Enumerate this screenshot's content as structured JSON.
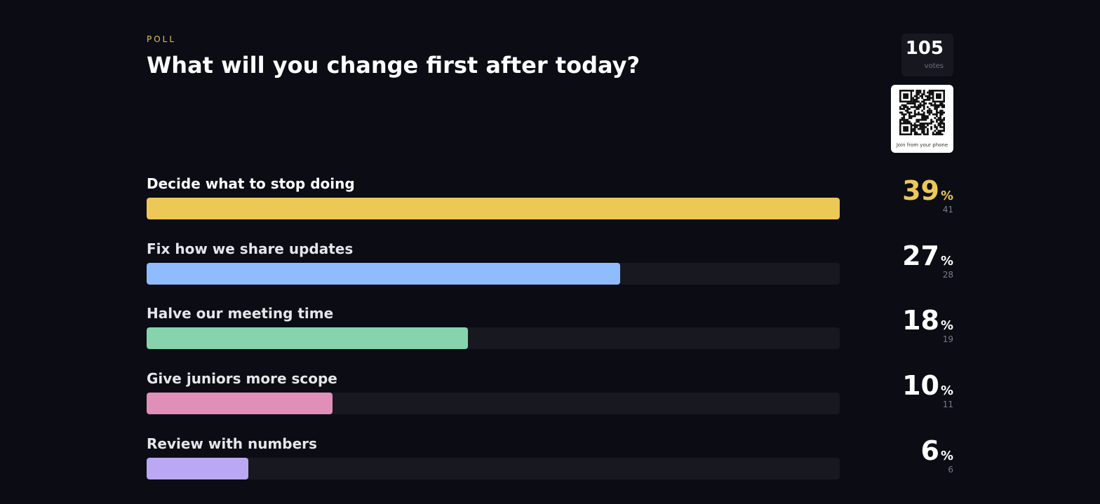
{
  "header": {
    "eyebrow": "POLL",
    "question": "What will you change first after today?"
  },
  "votes": {
    "count": "105",
    "label": "votes"
  },
  "qr": {
    "caption": "Join from your phone"
  },
  "chart_data": {
    "type": "bar",
    "orientation": "horizontal",
    "categories": [
      "Decide what to stop doing",
      "Fix how we share updates",
      "Halve our meeting time",
      "Give juniors more scope",
      "Review with numbers"
    ],
    "values": [
      41,
      28,
      19,
      11,
      6
    ],
    "percentages": [
      39,
      27,
      18,
      10,
      6
    ],
    "percent_sign": "%",
    "colors": [
      "#ecc856",
      "#8fbcff",
      "#86d4ad",
      "#e08fb9",
      "#bba8f2"
    ],
    "title": "What will you change first after today?",
    "legend": "none",
    "grid": false
  }
}
